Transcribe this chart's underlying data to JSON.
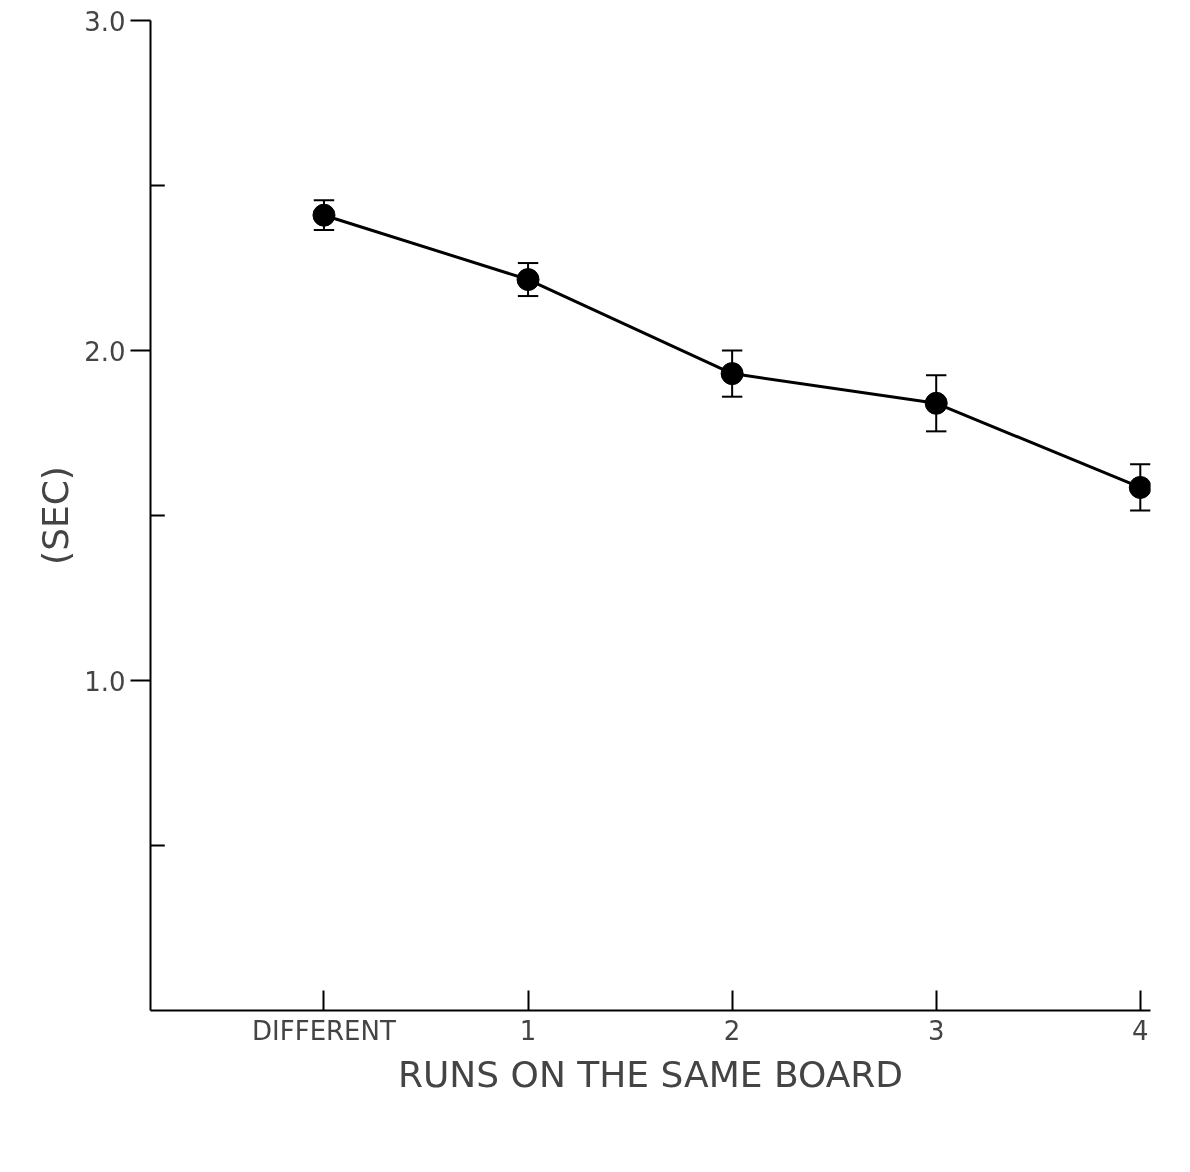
{
  "chart_data": {
    "type": "line",
    "xlabel": "RUNS ON THE SAME BOARD",
    "ylabel": "(SEC)",
    "categories": [
      "DIFFERENT",
      "1",
      "2",
      "3",
      "4"
    ],
    "values": [
      2.41,
      2.215,
      1.93,
      1.84,
      1.585
    ],
    "errors": [
      0.045,
      0.05,
      0.07,
      0.085,
      0.07
    ],
    "color": "#000000",
    "marker": "circle",
    "line_style": "solid",
    "grid": false,
    "ylim": [
      0,
      3.0
    ],
    "yticks": [
      {
        "value": 0.5,
        "label": null
      },
      {
        "value": 1,
        "label": "1.0"
      },
      {
        "value": 1.5,
        "label": null
      },
      {
        "value": 2,
        "label": "2.0"
      },
      {
        "value": 2.5,
        "label": null
      },
      {
        "value": 3,
        "label": "3.0"
      }
    ]
  }
}
